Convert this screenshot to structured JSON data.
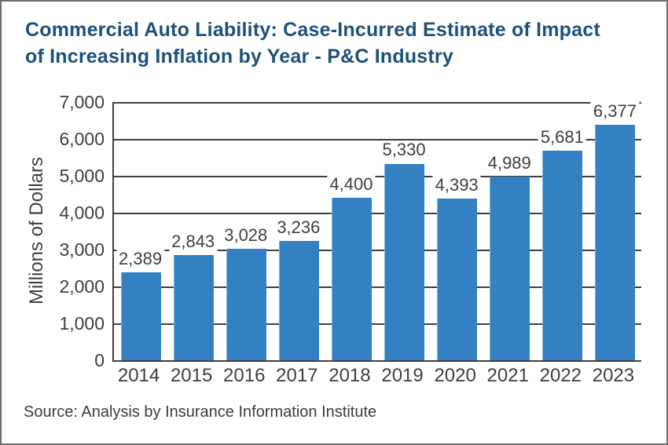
{
  "chart": {
    "title": "Commercial Auto Liability: Case-Incurred Estimate of Impact of Increasing Inflation by Year - P&C Industry",
    "title_line1": "Commercial Auto Liability: Case-Incurred Estimate of Impact",
    "title_line2": "of Increasing Inflation by Year - P&C Industry",
    "y_axis_title": "Millions of Dollars",
    "source": "Source: Analysis by Insurance Information Institute"
  },
  "chart_data": {
    "type": "bar",
    "title": "Commercial Auto Liability: Case-Incurred Estimate of Impact of Increasing Inflation by Year - P&C Industry",
    "categories": [
      "2014",
      "2015",
      "2016",
      "2017",
      "2018",
      "2019",
      "2020",
      "2021",
      "2022",
      "2023"
    ],
    "values": [
      2389,
      2843,
      3028,
      3236,
      4400,
      5330,
      4393,
      4989,
      5681,
      6377
    ],
    "value_labels": [
      "2,389",
      "2,843",
      "3,028",
      "3,236",
      "4,400",
      "5,330",
      "4,393",
      "4,989",
      "5,681",
      "6,377"
    ],
    "xlabel": "",
    "ylabel": "Millions of Dollars",
    "ylim": [
      0,
      7000
    ],
    "ytick_interval": 1000,
    "ytick_labels": [
      "0",
      "1,000",
      "2,000",
      "3,000",
      "4,000",
      "5,000",
      "6,000",
      "7,000"
    ],
    "grid": true,
    "legend": "none",
    "source": "Source: Analysis by Insurance Information Institute",
    "colors": {
      "bar": "#3380c2",
      "title": "#1d5179",
      "text": "#3f3f3f",
      "axis": "#3f3f3f",
      "frame_border": "#6e6e6e"
    }
  }
}
